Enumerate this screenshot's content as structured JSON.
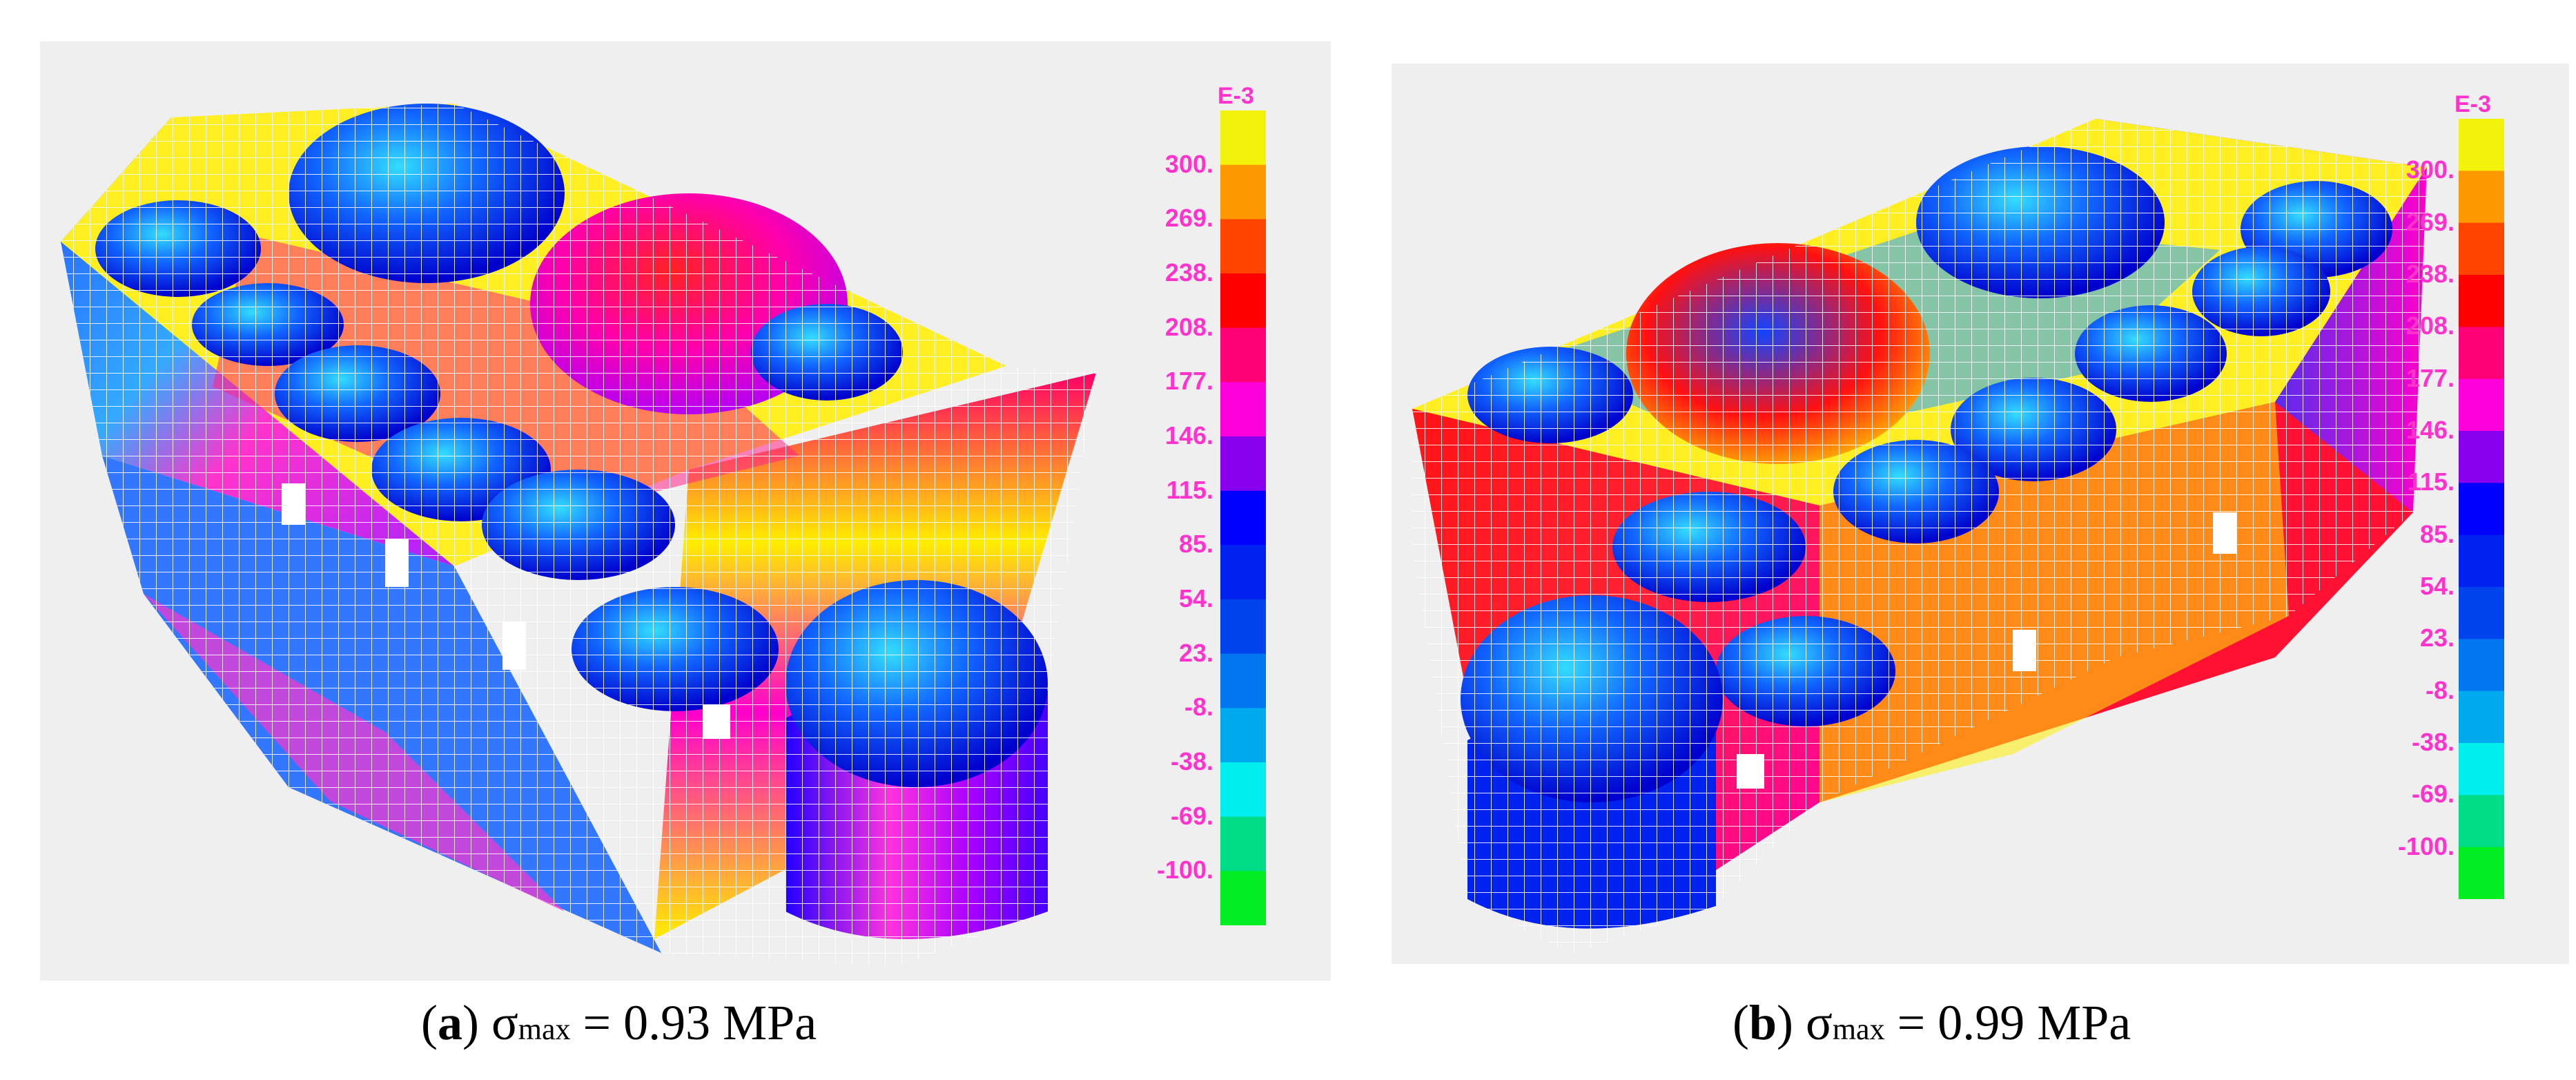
{
  "figures": [
    {
      "id": "a",
      "caption": {
        "letter": "a",
        "sigma": "σ",
        "subscript": "max",
        "value_text": "= 0.93 MPa"
      },
      "legend": {
        "unit": "E-3",
        "ticks": [
          "300.",
          "269.",
          "238.",
          "208.",
          "177.",
          "146.",
          "115.",
          "85.",
          "54.",
          "23.",
          "-8.",
          "-38.",
          "-69.",
          "-100."
        ]
      }
    },
    {
      "id": "b",
      "caption": {
        "letter": "b",
        "sigma": "σ",
        "subscript": "max",
        "value_text": "= 0.99 MPa"
      },
      "legend": {
        "unit": "E-3",
        "ticks": [
          "300.",
          "269.",
          "238.",
          "208.",
          "177.",
          "146.",
          "115.",
          "85.",
          "54.",
          "23.",
          "-8.",
          "-38.",
          "-69.",
          "-100."
        ]
      }
    }
  ],
  "colors": {
    "colorbar": [
      "#f2f20a",
      "#ff9900",
      "#ff4400",
      "#ff0000",
      "#ff0077",
      "#ff00dd",
      "#8800ee",
      "#0000ff",
      "#0022ee",
      "#0044ee",
      "#0077ee",
      "#00aaee",
      "#00eeee",
      "#00dd88",
      "#00ee22"
    ],
    "tick_text": "#ff33cc",
    "mesh": "#ffffff",
    "background": "#efefef"
  }
}
